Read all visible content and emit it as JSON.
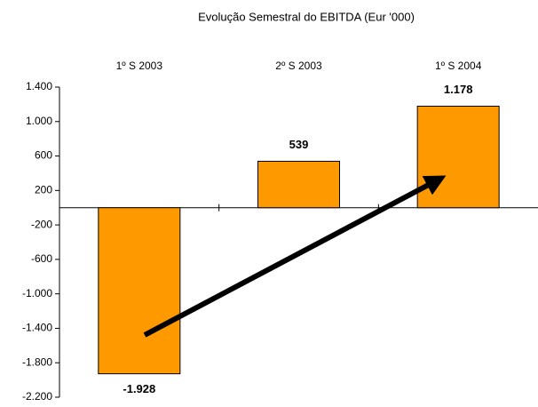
{
  "chart_data": {
    "type": "bar",
    "title": "Evolução Semestral do EBITDA (Eur '000)",
    "categories": [
      "1º S 2003",
      "2º S 2003",
      "1º S 2004"
    ],
    "values": [
      -1928,
      539,
      1178
    ],
    "value_labels": [
      "-1.928",
      "539",
      "1.178"
    ],
    "color": "#ff9900",
    "ylim": [
      -2200,
      1400
    ],
    "yticks": [
      {
        "value": 1400,
        "label": "1.400"
      },
      {
        "value": 1000,
        "label": "1.000"
      },
      600,
      200,
      -200,
      -600,
      {
        "value": -1000,
        "label": "-1.000"
      },
      {
        "value": -1400,
        "label": "-1.400"
      },
      {
        "value": -1800,
        "label": "-1.800"
      },
      {
        "value": -2200,
        "label": "-2.200"
      }
    ],
    "grid": false
  }
}
